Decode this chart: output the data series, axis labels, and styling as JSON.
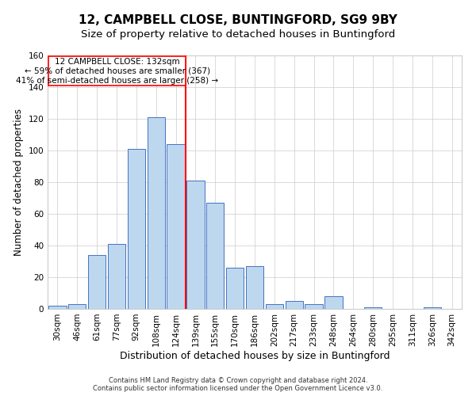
{
  "title1": "12, CAMPBELL CLOSE, BUNTINGFORD, SG9 9BY",
  "title2": "Size of property relative to detached houses in Buntingford",
  "xlabel": "Distribution of detached houses by size in Buntingford",
  "ylabel": "Number of detached properties",
  "footnote": "Contains HM Land Registry data © Crown copyright and database right 2024.\nContains public sector information licensed under the Open Government Licence v3.0.",
  "bar_labels": [
    "30sqm",
    "46sqm",
    "61sqm",
    "77sqm",
    "92sqm",
    "108sqm",
    "124sqm",
    "139sqm",
    "155sqm",
    "170sqm",
    "186sqm",
    "202sqm",
    "217sqm",
    "233sqm",
    "248sqm",
    "264sqm",
    "280sqm",
    "295sqm",
    "311sqm",
    "326sqm",
    "342sqm"
  ],
  "bar_heights": [
    2,
    3,
    34,
    41,
    101,
    121,
    104,
    81,
    67,
    26,
    27,
    3,
    5,
    3,
    8,
    0,
    1,
    0,
    0,
    1,
    0
  ],
  "bar_color": "#BDD7EE",
  "bar_edge_color": "#4472C4",
  "vline_x_index": 6.5,
  "property_label": "12 CAMPBELL CLOSE: 132sqm",
  "pct_smaller": 59,
  "n_smaller": 367,
  "pct_larger": 41,
  "n_larger": 258,
  "box_color": "#FF0000",
  "vline_color": "#FF0000",
  "ylim": [
    0,
    160
  ],
  "yticks": [
    0,
    20,
    40,
    60,
    80,
    100,
    120,
    140,
    160
  ],
  "grid_color": "#CCCCCC",
  "bg_color": "#FFFFFF",
  "title1_fontsize": 11,
  "title2_fontsize": 9.5,
  "xlabel_fontsize": 9,
  "ylabel_fontsize": 8.5,
  "tick_fontsize": 7.5,
  "annotation_fontsize": 7.5,
  "footnote_fontsize": 6
}
